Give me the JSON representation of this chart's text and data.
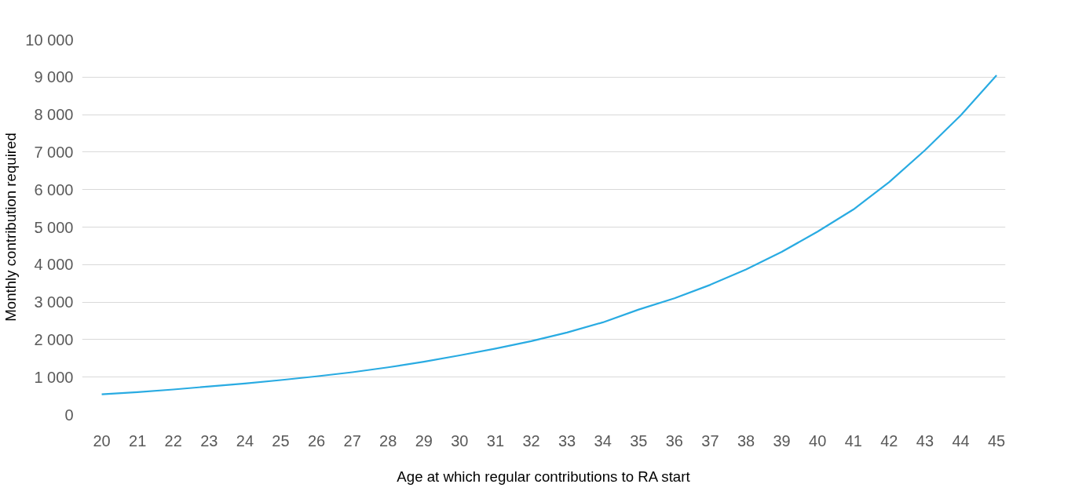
{
  "chart_data": {
    "type": "line",
    "xlabel": "Age at which regular contributions to RA start",
    "ylabel": "Monthly contribution required",
    "categories": [
      "20",
      "21",
      "22",
      "23",
      "24",
      "25",
      "26",
      "27",
      "28",
      "29",
      "30",
      "31",
      "32",
      "33",
      "34",
      "35",
      "36",
      "37",
      "38",
      "39",
      "40",
      "41",
      "42",
      "43",
      "44",
      "45"
    ],
    "series": [
      {
        "color": "#29abe2",
        "values": [
          540,
          600,
          670,
          750,
          830,
          920,
          1020,
          1130,
          1260,
          1410,
          1580,
          1760,
          1960,
          2190,
          2460,
          2800,
          3100,
          3460,
          3870,
          4340,
          4880,
          5470,
          6200,
          7050,
          7980,
          9050
        ]
      }
    ],
    "ylim": [
      0,
      10000
    ],
    "yticks": [
      {
        "value": 0,
        "label": "0"
      },
      {
        "value": 1000,
        "label": "1 000"
      },
      {
        "value": 2000,
        "label": "2 000"
      },
      {
        "value": 3000,
        "label": "3 000"
      },
      {
        "value": 4000,
        "label": "4 000"
      },
      {
        "value": 5000,
        "label": "5 000"
      },
      {
        "value": 6000,
        "label": "6 000"
      },
      {
        "value": 7000,
        "label": "7 000"
      },
      {
        "value": 8000,
        "label": "8 000"
      },
      {
        "value": 9000,
        "label": "9 000"
      },
      {
        "value": 10000,
        "label": "10 000"
      }
    ],
    "grid": "y",
    "marker": "none",
    "line_style": "solid"
  }
}
